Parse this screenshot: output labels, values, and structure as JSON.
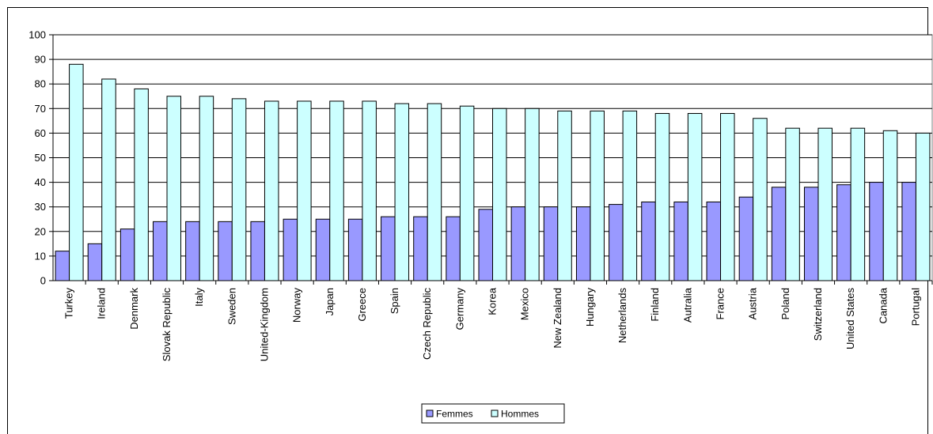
{
  "chart_data": {
    "type": "bar",
    "title": "",
    "xlabel": "",
    "ylabel": "",
    "ylim": [
      0,
      100
    ],
    "yticks": [
      0,
      10,
      20,
      30,
      40,
      50,
      60,
      70,
      80,
      90,
      100
    ],
    "grid": true,
    "legend_position": "bottom",
    "categories": [
      "Turkey",
      "Ireland",
      "Denmark",
      "Slovak Republic",
      "Italy",
      "Sweden",
      "United-Kingdom",
      "Norway",
      "Japan",
      "Greece",
      "Spain",
      "Czech Republic",
      "Germany",
      "Korea",
      "Mexico",
      "New Zealand",
      "Hungary",
      "Netherlands",
      "Finland",
      "Autralia",
      "France",
      "Austria",
      "Poland",
      "Switzerland",
      "United States",
      "Canada",
      "Portugal"
    ],
    "series": [
      {
        "name": "Femmes",
        "color": "#9999ff",
        "values": [
          12,
          15,
          21,
          24,
          24,
          24,
          24,
          25,
          25,
          25,
          26,
          26,
          26,
          29,
          30,
          30,
          30,
          31,
          32,
          32,
          32,
          34,
          38,
          38,
          39,
          40,
          40
        ]
      },
      {
        "name": "Hommes",
        "color": "#ccffff",
        "values": [
          88,
          82,
          78,
          75,
          75,
          74,
          73,
          73,
          73,
          73,
          72,
          72,
          71,
          70,
          70,
          69,
          69,
          69,
          68,
          68,
          68,
          66,
          62,
          62,
          62,
          61,
          60
        ]
      }
    ]
  }
}
